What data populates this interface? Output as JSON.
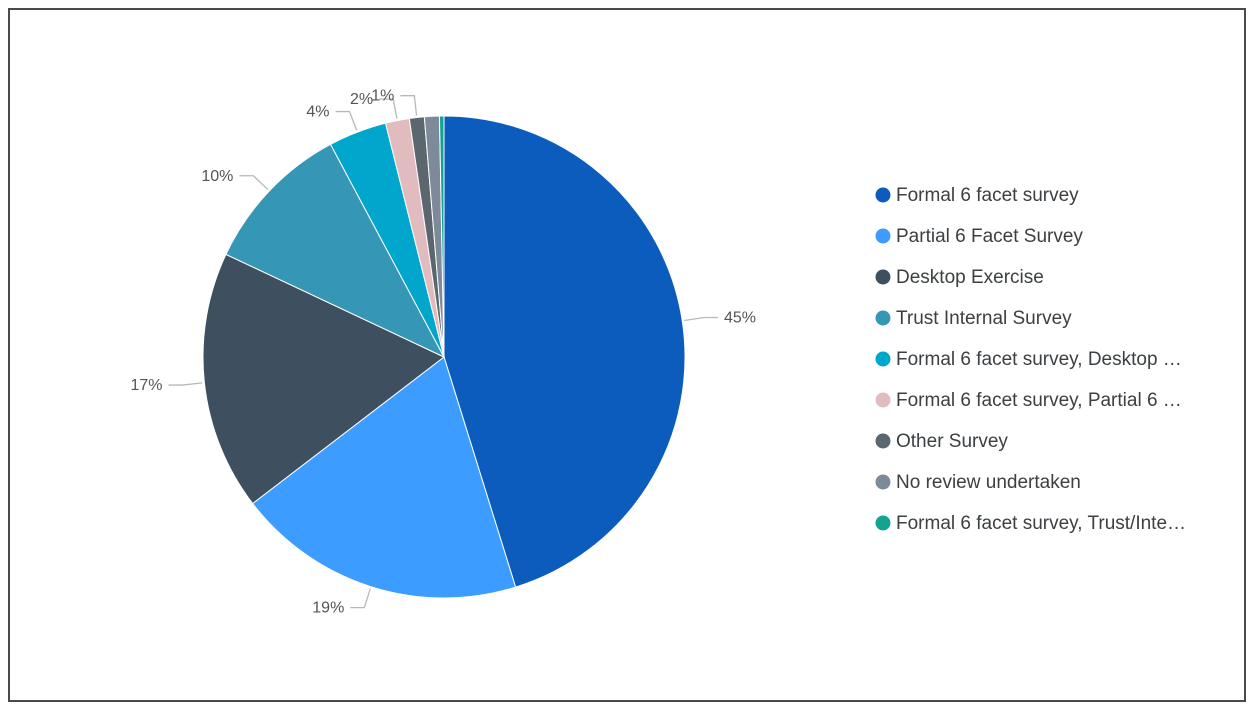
{
  "chart_data": {
    "type": "pie",
    "title": "",
    "slices": [
      {
        "label": "Formal 6 facet survey",
        "value": 45.2,
        "display": "45%",
        "color": "#0b5cbc"
      },
      {
        "label": "Partial 6 Facet Survey",
        "value": 19.4,
        "display": "19%",
        "color": "#3d9cff"
      },
      {
        "label": "Desktop Exercise",
        "value": 17.4,
        "display": "17%",
        "color": "#3e4f60"
      },
      {
        "label": "Trust Internal Survey",
        "value": 10.2,
        "display": "10%",
        "color": "#3596b5"
      },
      {
        "label": "Formal 6 facet survey, Desktop …",
        "value": 3.9,
        "display": "4%",
        "color": "#00a6cc"
      },
      {
        "label": "Formal 6 facet survey, Partial 6 …",
        "value": 1.6,
        "display": "2%",
        "color": "#e0bcbf"
      },
      {
        "label": "Other Survey",
        "value": 1.0,
        "display": "1%",
        "color": "#5b666f"
      },
      {
        "label": "No review undertaken",
        "value": 1.0,
        "display": "",
        "color": "#7d8a99"
      },
      {
        "label": "Formal 6 facet survey, Trust/Inte…",
        "value": 0.3,
        "display": "",
        "color": "#13a392"
      }
    ],
    "legend_position": "right"
  }
}
